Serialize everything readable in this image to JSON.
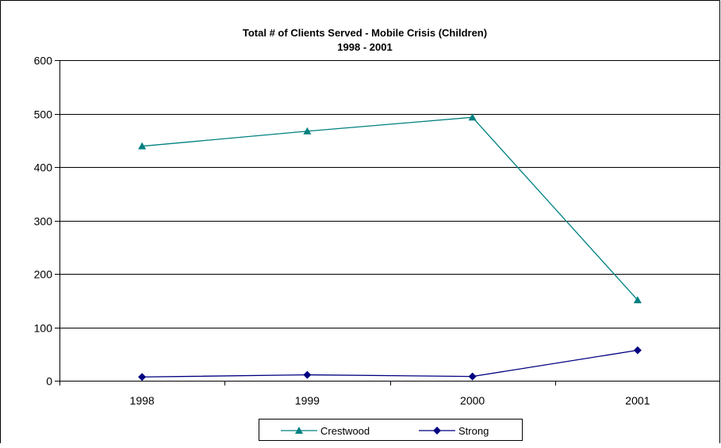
{
  "chart_data": {
    "type": "line",
    "title": "Total # of Clients Served - Mobile Crisis (Children)",
    "subtitle": "1998 - 2001",
    "categories": [
      "1998",
      "1999",
      "2000",
      "2001"
    ],
    "ylim": [
      0,
      600
    ],
    "yticks": [
      "0",
      "100",
      "200",
      "300",
      "400",
      "500",
      "600"
    ],
    "grid": true,
    "legend_position": "bottom",
    "series": [
      {
        "name": "Crestwood",
        "values": [
          439,
          467,
          493,
          151
        ],
        "color": "#008080",
        "marker": "triangle"
      },
      {
        "name": "Strong",
        "values": [
          7,
          11,
          8,
          57
        ],
        "color": "#000080",
        "marker": "diamond"
      }
    ]
  }
}
